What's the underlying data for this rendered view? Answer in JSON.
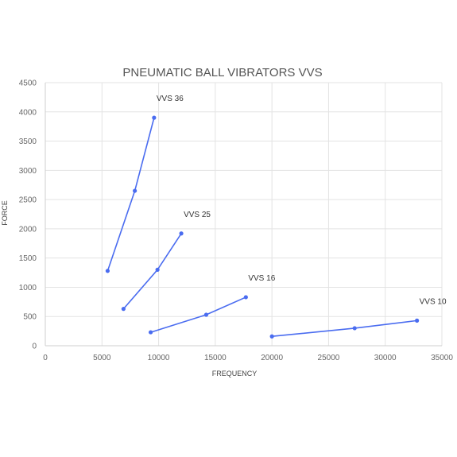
{
  "chart_data": {
    "type": "line",
    "title": "PNEUMATIC BALL VIBRATORS VVS",
    "xlabel": "FREQUENCY",
    "ylabel": "FORCE",
    "xlim": [
      0,
      35000
    ],
    "ylim": [
      0,
      4500
    ],
    "xticks": [
      0,
      5000,
      10000,
      15000,
      20000,
      25000,
      30000,
      35000
    ],
    "yticks": [
      0,
      500,
      1000,
      1500,
      2000,
      2500,
      3000,
      3500,
      4000,
      4500
    ],
    "grid": true,
    "color": "#4a6cf0",
    "series": [
      {
        "name": "VVS 36",
        "points": [
          [
            5500,
            1280
          ],
          [
            7900,
            2650
          ],
          [
            9600,
            3900
          ]
        ]
      },
      {
        "name": "VVS 25",
        "points": [
          [
            6900,
            630
          ],
          [
            9900,
            1300
          ],
          [
            12000,
            1920
          ]
        ]
      },
      {
        "name": "VVS 16",
        "points": [
          [
            9300,
            230
          ],
          [
            14200,
            530
          ],
          [
            17700,
            830
          ]
        ]
      },
      {
        "name": "VVS 10",
        "points": [
          [
            20000,
            160
          ],
          [
            27300,
            300
          ],
          [
            32800,
            430
          ]
        ]
      }
    ]
  }
}
